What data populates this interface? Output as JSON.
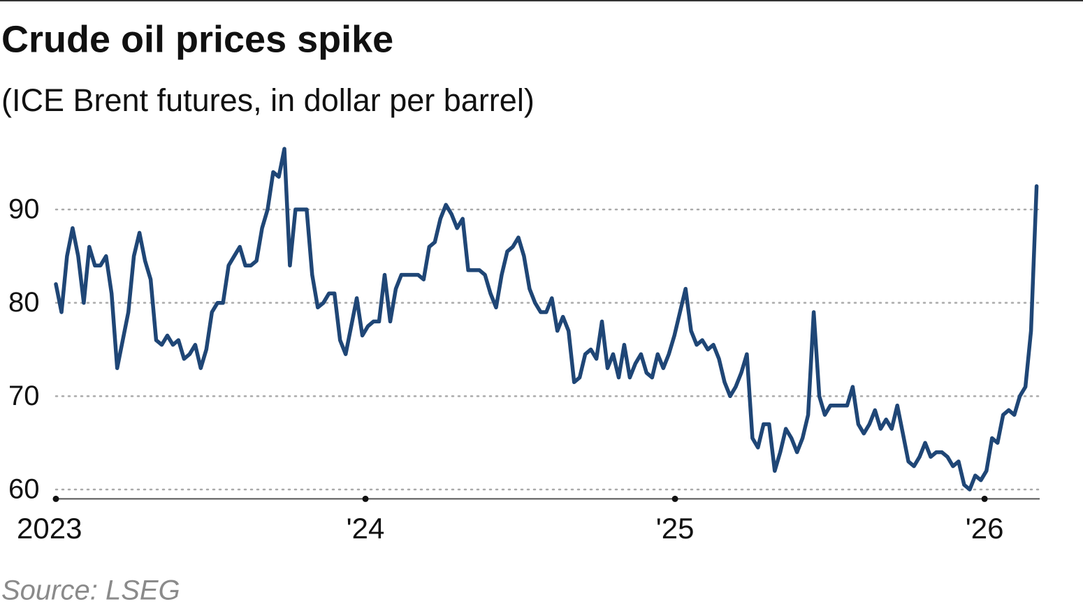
{
  "chart_data": {
    "type": "line",
    "title": "Crude oil prices spike",
    "subtitle": "(ICE Brent futures, in dollar per barrel)",
    "source": "Source: LSEG",
    "color": "#1f4676",
    "grid": true,
    "xlim": [
      2023,
      2026.178
    ],
    "ylim": [
      59,
      97
    ],
    "yticks": [
      60,
      70,
      80,
      90
    ],
    "xticks": [
      {
        "value": 2023,
        "label": "2023"
      },
      {
        "value": 2024,
        "label": "'24"
      },
      {
        "value": 2025,
        "label": "'25"
      },
      {
        "value": 2026,
        "label": "'26"
      }
    ],
    "x": [
      2023,
      2023.018,
      2023.036,
      2023.054,
      2023.072,
      2023.09,
      2023.108,
      2023.126,
      2023.144,
      2023.162,
      2023.18,
      2023.198,
      2023.216,
      2023.234,
      2023.252,
      2023.27,
      2023.288,
      2023.306,
      2023.324,
      2023.342,
      2023.36,
      2023.378,
      2023.396,
      2023.414,
      2023.432,
      2023.45,
      2023.468,
      2023.486,
      2023.504,
      2023.522,
      2023.54,
      2023.558,
      2023.576,
      2023.594,
      2023.612,
      2023.63,
      2023.648,
      2023.666,
      2023.684,
      2023.702,
      2023.72,
      2023.738,
      2023.756,
      2023.774,
      2023.792,
      2023.81,
      2023.828,
      2023.846,
      2023.864,
      2023.882,
      2023.9,
      2023.918,
      2023.936,
      2023.954,
      2023.972,
      2023.99,
      2024.008,
      2024.026,
      2024.044,
      2024.062,
      2024.08,
      2024.098,
      2024.116,
      2024.134,
      2024.152,
      2024.17,
      2024.188,
      2024.206,
      2024.224,
      2024.242,
      2024.26,
      2024.278,
      2024.296,
      2024.314,
      2024.332,
      2024.35,
      2024.368,
      2024.386,
      2024.404,
      2024.422,
      2024.44,
      2024.458,
      2024.476,
      2024.494,
      2024.512,
      2024.53,
      2024.548,
      2024.566,
      2024.584,
      2024.602,
      2024.62,
      2024.638,
      2024.656,
      2024.674,
      2024.692,
      2024.71,
      2024.728,
      2024.746,
      2024.764,
      2024.782,
      2024.8,
      2024.818,
      2024.836,
      2024.854,
      2024.872,
      2024.89,
      2024.908,
      2024.926,
      2024.944,
      2024.962,
      2024.98,
      2024.998,
      2025.016,
      2025.034,
      2025.052,
      2025.07,
      2025.088,
      2025.106,
      2025.124,
      2025.142,
      2025.16,
      2025.178,
      2025.196,
      2025.214,
      2025.232,
      2025.25,
      2025.268,
      2025.286,
      2025.304,
      2025.322,
      2025.34,
      2025.358,
      2025.376,
      2025.394,
      2025.412,
      2025.43,
      2025.448,
      2025.466,
      2025.484,
      2025.502,
      2025.52,
      2025.538,
      2025.556,
      2025.574,
      2025.592,
      2025.61,
      2025.628,
      2025.646,
      2025.664,
      2025.682,
      2025.7,
      2025.718,
      2025.736,
      2025.754,
      2025.772,
      2025.79,
      2025.808,
      2025.826,
      2025.844,
      2025.862,
      2025.88,
      2025.898,
      2025.916,
      2025.934,
      2025.952,
      2025.97,
      2025.988,
      2026.006,
      2026.024,
      2026.042,
      2026.06,
      2026.078,
      2026.096,
      2026.114,
      2026.132,
      2026.15,
      2026.168
    ],
    "values": [
      82,
      79,
      85,
      88,
      85,
      80,
      86,
      84,
      84,
      85,
      81,
      73,
      76,
      79,
      85,
      87.5,
      84.5,
      82.5,
      76,
      75.5,
      76.5,
      75.5,
      76,
      74,
      74.5,
      75.5,
      73,
      75,
      79,
      80,
      80,
      84,
      85,
      86,
      84,
      84,
      84.5,
      88,
      90,
      94,
      93.5,
      96.5,
      84,
      90,
      90,
      90,
      83,
      79.5,
      80,
      81,
      81,
      76,
      74.5,
      77.5,
      80.5,
      76.5,
      77.5,
      78,
      78,
      83,
      78,
      81.5,
      83,
      83,
      83,
      83,
      82.5,
      86,
      86.5,
      89,
      90.5,
      89.5,
      88,
      89,
      83.5,
      83.5,
      83.5,
      83,
      81,
      79.5,
      83,
      85.5,
      86,
      87,
      85,
      81.5,
      80,
      79,
      79,
      80.5,
      77,
      78.5,
      77,
      71.5,
      72,
      74.5,
      75,
      74,
      78,
      73,
      74.5,
      72,
      75.5,
      72,
      73.5,
      74.5,
      72.5,
      72,
      74.5,
      73,
      74.5,
      76.5,
      79,
      81.5,
      77,
      75.5,
      76,
      75,
      75.5,
      74,
      71.5,
      70,
      71,
      72.5,
      74.5,
      65.5,
      64.5,
      67,
      67,
      62,
      64,
      66.5,
      65.5,
      64,
      65.5,
      68,
      79,
      70,
      68,
      69,
      69,
      69,
      69,
      71,
      67,
      66,
      67,
      68.5,
      66.5,
      67.5,
      66.5,
      69,
      66,
      63,
      62.5,
      63.5,
      65,
      63.5,
      64,
      64,
      63.5,
      62.5,
      63,
      60.5,
      60,
      61.5,
      61,
      62,
      65.5,
      65,
      68,
      68.5,
      68,
      70,
      71,
      77,
      92.5
    ]
  }
}
